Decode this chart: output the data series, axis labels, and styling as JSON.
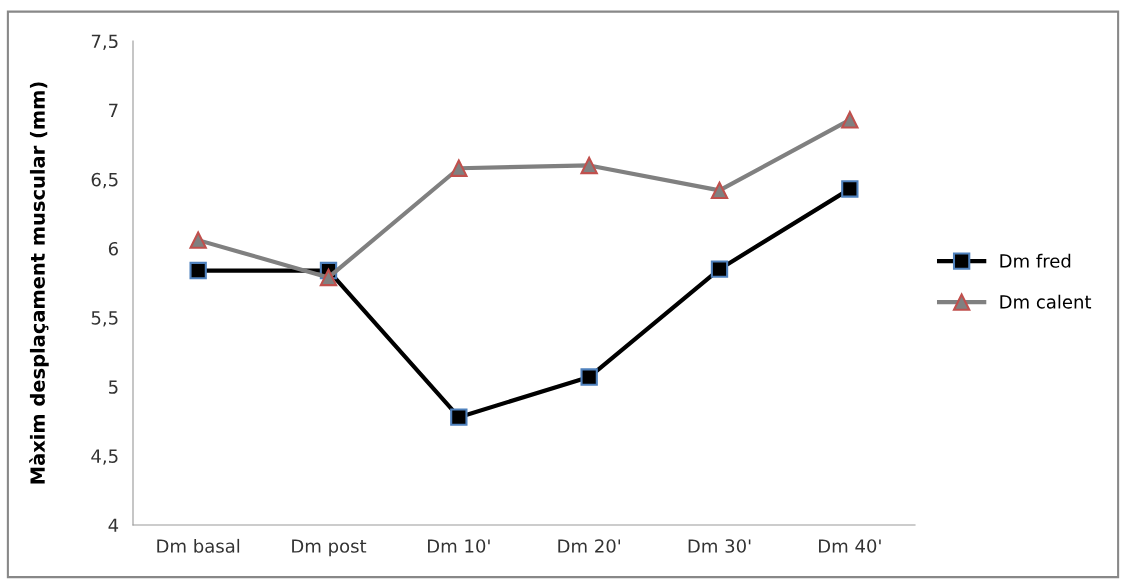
{
  "chart_data": {
    "type": "line",
    "ylabel": "Màxim desplaçament muscular (mm)",
    "categories": [
      "Dm basal",
      "Dm post",
      "Dm 10'",
      "Dm 20'",
      "Dm 30'",
      "Dm 40'"
    ],
    "series": [
      {
        "name": "Dm fred",
        "color": "#000000",
        "marker": "square",
        "values": [
          5.84,
          5.84,
          4.78,
          5.07,
          5.85,
          6.43
        ]
      },
      {
        "name": "Dm calent",
        "color": "#808080",
        "marker": "triangle",
        "values": [
          6.06,
          5.79,
          6.58,
          6.6,
          6.42,
          6.93
        ]
      }
    ],
    "ylim": [
      4,
      7.5
    ],
    "yticks": [
      {
        "value": 4,
        "label": "4"
      },
      {
        "value": 4.5,
        "label": "4,5"
      },
      {
        "value": 5,
        "label": "5"
      },
      {
        "value": 5.5,
        "label": "5,5"
      },
      {
        "value": 6,
        "label": "6"
      },
      {
        "value": 6.5,
        "label": "6,5"
      },
      {
        "value": 7,
        "label": "7"
      },
      {
        "value": 7.5,
        "label": "7,5"
      }
    ],
    "grid": false,
    "legend": "right",
    "line_style": "solid"
  }
}
